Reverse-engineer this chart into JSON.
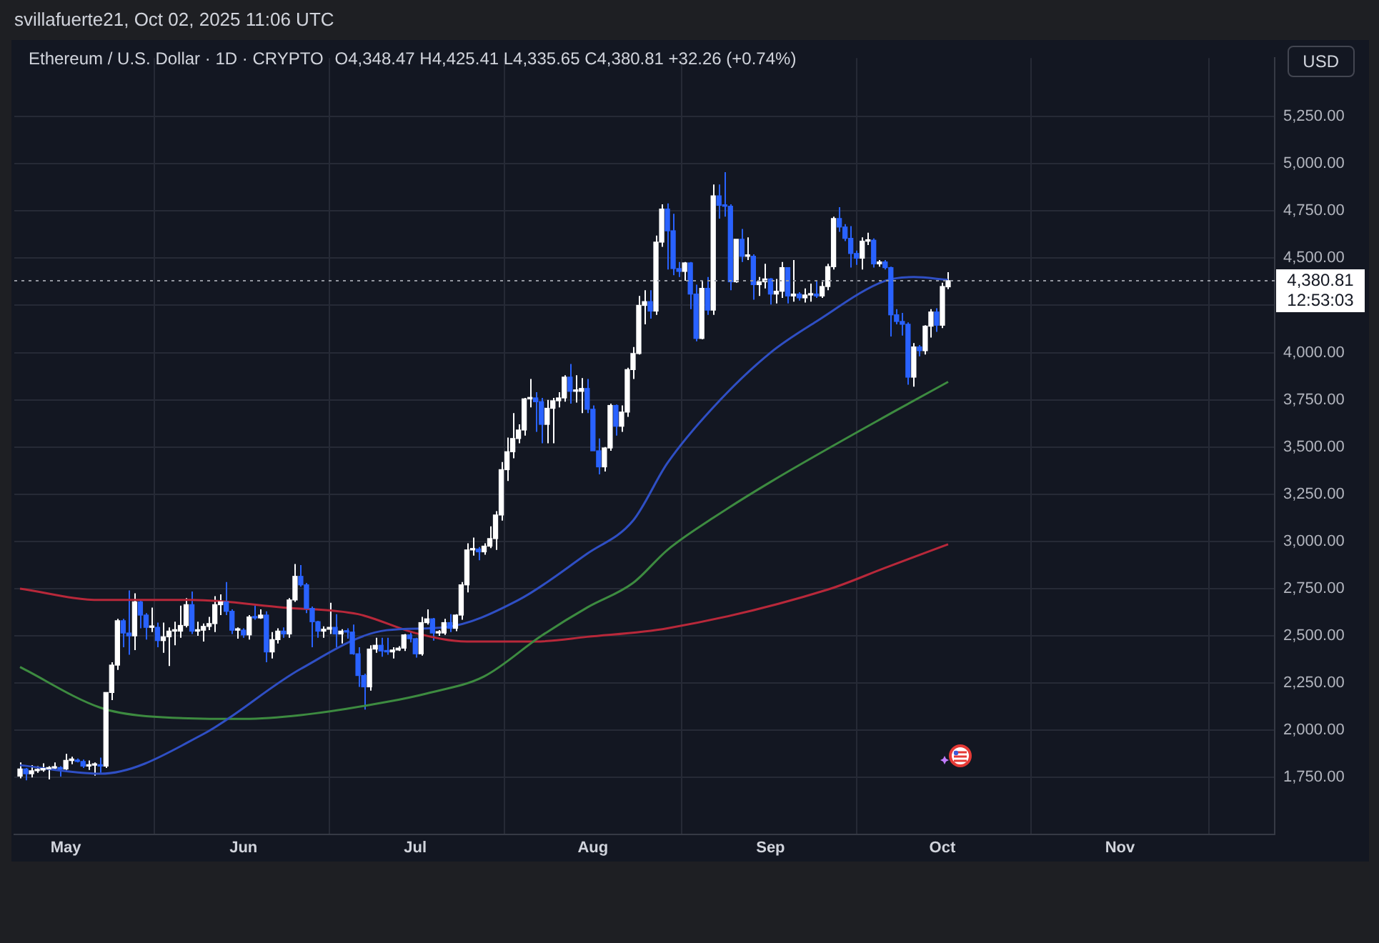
{
  "chart_data": {
    "type": "candlestick",
    "title": "Ethereum / U.S. Dollar · 1D · CRYPTO",
    "subtitle": "O4,348.47  H4,425.41  L4,335.65  C4,380.81  +32.26 (+0.74%)",
    "ylabel": "USD",
    "annotations": [
      "svillafuerte21, Oct 02, 2025 11:06 UTC",
      "12:53:03"
    ],
    "x": [
      "2025-04-23",
      "2025-04-24",
      "2025-04-25",
      "2025-04-26",
      "2025-04-27",
      "2025-04-28",
      "2025-04-29",
      "2025-04-30",
      "2025-05-01",
      "2025-05-02",
      "2025-05-03",
      "2025-05-04",
      "2025-05-05",
      "2025-05-06",
      "2025-05-07",
      "2025-05-08",
      "2025-05-09",
      "2025-05-10",
      "2025-05-11",
      "2025-05-12",
      "2025-05-13",
      "2025-05-14",
      "2025-05-15",
      "2025-05-16",
      "2025-05-17",
      "2025-05-18",
      "2025-05-19",
      "2025-05-20",
      "2025-05-21",
      "2025-05-22",
      "2025-05-23",
      "2025-05-24",
      "2025-05-25",
      "2025-05-26",
      "2025-05-27",
      "2025-05-28",
      "2025-05-29",
      "2025-05-30",
      "2025-05-31",
      "2025-06-01",
      "2025-06-02",
      "2025-06-03",
      "2025-06-04",
      "2025-06-05",
      "2025-06-06",
      "2025-06-07",
      "2025-06-08",
      "2025-06-09",
      "2025-06-10",
      "2025-06-11",
      "2025-06-12",
      "2025-06-13",
      "2025-06-14",
      "2025-06-15",
      "2025-06-16",
      "2025-06-17",
      "2025-06-18",
      "2025-06-19",
      "2025-06-20",
      "2025-06-21",
      "2025-06-22",
      "2025-06-23",
      "2025-06-24",
      "2025-06-25",
      "2025-06-26",
      "2025-06-27",
      "2025-06-28",
      "2025-06-29",
      "2025-06-30",
      "2025-07-01",
      "2025-07-02",
      "2025-07-03",
      "2025-07-04",
      "2025-07-05",
      "2025-07-06",
      "2025-07-07",
      "2025-07-08",
      "2025-07-09",
      "2025-07-10",
      "2025-07-11",
      "2025-07-12",
      "2025-07-13",
      "2025-07-14",
      "2025-07-15",
      "2025-07-16",
      "2025-07-17",
      "2025-07-18",
      "2025-07-19",
      "2025-07-20",
      "2025-07-21",
      "2025-07-22",
      "2025-07-23",
      "2025-07-24",
      "2025-07-25",
      "2025-07-26",
      "2025-07-27",
      "2025-07-28",
      "2025-07-29",
      "2025-07-30",
      "2025-07-31",
      "2025-08-01",
      "2025-08-02",
      "2025-08-03",
      "2025-08-04",
      "2025-08-05",
      "2025-08-06",
      "2025-08-07",
      "2025-08-08",
      "2025-08-09",
      "2025-08-10",
      "2025-08-11",
      "2025-08-12",
      "2025-08-13",
      "2025-08-14",
      "2025-08-15",
      "2025-08-16",
      "2025-08-17",
      "2025-08-18",
      "2025-08-19",
      "2025-08-20",
      "2025-08-21",
      "2025-08-22",
      "2025-08-23",
      "2025-08-24",
      "2025-08-25",
      "2025-08-26",
      "2025-08-27",
      "2025-08-28",
      "2025-08-29",
      "2025-08-30",
      "2025-08-31",
      "2025-09-01",
      "2025-09-02",
      "2025-09-03",
      "2025-09-04",
      "2025-09-05",
      "2025-09-06",
      "2025-09-07",
      "2025-09-08",
      "2025-09-09",
      "2025-09-10",
      "2025-09-11",
      "2025-09-12",
      "2025-09-13",
      "2025-09-14",
      "2025-09-15",
      "2025-09-16",
      "2025-09-17",
      "2025-09-18",
      "2025-09-19",
      "2025-09-20",
      "2025-09-21",
      "2025-09-22",
      "2025-09-23",
      "2025-09-24",
      "2025-09-25",
      "2025-09-26",
      "2025-09-27",
      "2025-09-28",
      "2025-09-29",
      "2025-09-30",
      "2025-10-01",
      "2025-10-02"
    ],
    "ohlc": [
      [
        1757,
        1830,
        1745,
        1795
      ],
      [
        1795,
        1800,
        1735,
        1770
      ],
      [
        1770,
        1815,
        1750,
        1786
      ],
      [
        1786,
        1810,
        1775,
        1790
      ],
      [
        1790,
        1825,
        1780,
        1795
      ],
      [
        1795,
        1810,
        1740,
        1800
      ],
      [
        1800,
        1830,
        1785,
        1800
      ],
      [
        1800,
        1810,
        1755,
        1795
      ],
      [
        1795,
        1875,
        1790,
        1840
      ],
      [
        1840,
        1860,
        1820,
        1840
      ],
      [
        1840,
        1850,
        1830,
        1835
      ],
      [
        1835,
        1845,
        1800,
        1810
      ],
      [
        1810,
        1840,
        1790,
        1815
      ],
      [
        1815,
        1830,
        1760,
        1815
      ],
      [
        1815,
        1855,
        1775,
        1810
      ],
      [
        1810,
        2200,
        1800,
        2200
      ],
      [
        2200,
        2360,
        2160,
        2345
      ],
      [
        2345,
        2590,
        2320,
        2580
      ],
      [
        2580,
        2590,
        2440,
        2515
      ],
      [
        2515,
        2740,
        2400,
        2500
      ],
      [
        2500,
        2725,
        2425,
        2680
      ],
      [
        2680,
        2690,
        2540,
        2610
      ],
      [
        2610,
        2620,
        2480,
        2545
      ],
      [
        2545,
        2650,
        2520,
        2545
      ],
      [
        2545,
        2570,
        2440,
        2475
      ],
      [
        2475,
        2570,
        2410,
        2495
      ],
      [
        2495,
        2545,
        2340,
        2525
      ],
      [
        2525,
        2575,
        2450,
        2525
      ],
      [
        2525,
        2660,
        2490,
        2555
      ],
      [
        2555,
        2700,
        2545,
        2665
      ],
      [
        2665,
        2735,
        2510,
        2525
      ],
      [
        2525,
        2575,
        2500,
        2530
      ],
      [
        2530,
        2565,
        2470,
        2550
      ],
      [
        2550,
        2600,
        2530,
        2565
      ],
      [
        2565,
        2710,
        2520,
        2665
      ],
      [
        2665,
        2720,
        2610,
        2680
      ],
      [
        2680,
        2785,
        2610,
        2630
      ],
      [
        2630,
        2640,
        2510,
        2530
      ],
      [
        2530,
        2545,
        2485,
        2530
      ],
      [
        2530,
        2540,
        2490,
        2505
      ],
      [
        2505,
        2610,
        2480,
        2600
      ],
      [
        2600,
        2660,
        2585,
        2595
      ],
      [
        2595,
        2640,
        2590,
        2610
      ],
      [
        2610,
        2630,
        2360,
        2415
      ],
      [
        2415,
        2520,
        2380,
        2480
      ],
      [
        2480,
        2540,
        2460,
        2525
      ],
      [
        2525,
        2545,
        2490,
        2510
      ],
      [
        2510,
        2700,
        2490,
        2690
      ],
      [
        2690,
        2880,
        2680,
        2815
      ],
      [
        2815,
        2875,
        2760,
        2770
      ],
      [
        2770,
        2780,
        2620,
        2645
      ],
      [
        2645,
        2655,
        2440,
        2575
      ],
      [
        2575,
        2580,
        2490,
        2525
      ],
      [
        2525,
        2550,
        2490,
        2535
      ],
      [
        2535,
        2675,
        2510,
        2545
      ],
      [
        2545,
        2615,
        2440,
        2510
      ],
      [
        2510,
        2535,
        2460,
        2525
      ],
      [
        2525,
        2540,
        2485,
        2520
      ],
      [
        2520,
        2560,
        2400,
        2405
      ],
      [
        2405,
        2440,
        2230,
        2290
      ],
      [
        2290,
        2300,
        2110,
        2230
      ],
      [
        2230,
        2450,
        2210,
        2430
      ],
      [
        2430,
        2490,
        2410,
        2450
      ],
      [
        2450,
        2490,
        2390,
        2420
      ],
      [
        2420,
        2490,
        2400,
        2415
      ],
      [
        2415,
        2440,
        2380,
        2425
      ],
      [
        2425,
        2445,
        2420,
        2435
      ],
      [
        2435,
        2510,
        2420,
        2505
      ],
      [
        2505,
        2525,
        2465,
        2485
      ],
      [
        2485,
        2490,
        2385,
        2405
      ],
      [
        2405,
        2600,
        2395,
        2570
      ],
      [
        2570,
        2640,
        2560,
        2590
      ],
      [
        2590,
        2595,
        2475,
        2515
      ],
      [
        2515,
        2530,
        2500,
        2515
      ],
      [
        2515,
        2590,
        2505,
        2570
      ],
      [
        2570,
        2615,
        2520,
        2540
      ],
      [
        2540,
        2615,
        2525,
        2610
      ],
      [
        2610,
        2785,
        2585,
        2770
      ],
      [
        2770,
        2990,
        2730,
        2955
      ],
      [
        2955,
        3020,
        2925,
        2960
      ],
      [
        2960,
        2970,
        2900,
        2945
      ],
      [
        2945,
        2990,
        2930,
        2975
      ],
      [
        2975,
        3080,
        2965,
        3015
      ],
      [
        3015,
        3160,
        2955,
        3140
      ],
      [
        3140,
        3420,
        3110,
        3380
      ],
      [
        3380,
        3550,
        3320,
        3475
      ],
      [
        3475,
        3680,
        3440,
        3545
      ],
      [
        3545,
        3620,
        3520,
        3590
      ],
      [
        3590,
        3760,
        3560,
        3755
      ],
      [
        3755,
        3860,
        3710,
        3760
      ],
      [
        3760,
        3790,
        3580,
        3740
      ],
      [
        3740,
        3760,
        3520,
        3620
      ],
      [
        3620,
        3750,
        3520,
        3705
      ],
      [
        3705,
        3760,
        3520,
        3745
      ],
      [
        3745,
        3790,
        3710,
        3760
      ],
      [
        3760,
        3880,
        3740,
        3870
      ],
      [
        3870,
        3940,
        3730,
        3795
      ],
      [
        3795,
        3880,
        3735,
        3795
      ],
      [
        3795,
        3865,
        3680,
        3810
      ],
      [
        3810,
        3860,
        3680,
        3700
      ],
      [
        3700,
        3720,
        3480,
        3480
      ],
      [
        3480,
        3545,
        3355,
        3395
      ],
      [
        3395,
        3500,
        3370,
        3495
      ],
      [
        3495,
        3730,
        3480,
        3720
      ],
      [
        3720,
        3725,
        3560,
        3610
      ],
      [
        3610,
        3720,
        3580,
        3685
      ],
      [
        3685,
        3920,
        3660,
        3910
      ],
      [
        3910,
        4030,
        3860,
        3995
      ],
      [
        3995,
        4300,
        3990,
        4250
      ],
      [
        4250,
        4330,
        4150,
        4270
      ],
      [
        4270,
        4330,
        4180,
        4220
      ],
      [
        4220,
        4620,
        4200,
        4585
      ],
      [
        4585,
        4785,
        4560,
        4760
      ],
      [
        4760,
        4790,
        4440,
        4645
      ],
      [
        4645,
        4735,
        4410,
        4445
      ],
      [
        4445,
        4480,
        4400,
        4430
      ],
      [
        4430,
        4480,
        4380,
        4475
      ],
      [
        4475,
        4480,
        4230,
        4310
      ],
      [
        4310,
        4360,
        4060,
        4075
      ],
      [
        4075,
        4380,
        4070,
        4340
      ],
      [
        4340,
        4400,
        4200,
        4225
      ],
      [
        4225,
        4890,
        4200,
        4830
      ],
      [
        4830,
        4890,
        4710,
        4780
      ],
      [
        4780,
        4955,
        4720,
        4775
      ],
      [
        4775,
        4785,
        4330,
        4375
      ],
      [
        4375,
        4600,
        4370,
        4600
      ],
      [
        4600,
        4655,
        4480,
        4510
      ],
      [
        4510,
        4610,
        4490,
        4510
      ],
      [
        4510,
        4520,
        4280,
        4360
      ],
      [
        4360,
        4400,
        4300,
        4375
      ],
      [
        4375,
        4470,
        4340,
        4390
      ],
      [
        4390,
        4395,
        4255,
        4310
      ],
      [
        4310,
        4390,
        4260,
        4325
      ],
      [
        4325,
        4480,
        4290,
        4450
      ],
      [
        4450,
        4450,
        4260,
        4300
      ],
      [
        4300,
        4490,
        4270,
        4310
      ],
      [
        4310,
        4320,
        4275,
        4290
      ],
      [
        4290,
        4340,
        4265,
        4305
      ],
      [
        4305,
        4365,
        4270,
        4310
      ],
      [
        4310,
        4380,
        4290,
        4300
      ],
      [
        4300,
        4375,
        4290,
        4350
      ],
      [
        4350,
        4470,
        4330,
        4455
      ],
      [
        4455,
        4720,
        4440,
        4710
      ],
      [
        4710,
        4770,
        4640,
        4665
      ],
      [
        4665,
        4680,
        4590,
        4605
      ],
      [
        4605,
        4670,
        4450,
        4525
      ],
      [
        4525,
        4540,
        4465,
        4500
      ],
      [
        4500,
        4610,
        4440,
        4590
      ],
      [
        4590,
        4635,
        4570,
        4595
      ],
      [
        4595,
        4605,
        4450,
        4470
      ],
      [
        4470,
        4490,
        4455,
        4480
      ],
      [
        4480,
        4490,
        4440,
        4450
      ],
      [
        4450,
        4455,
        4085,
        4200
      ],
      [
        4200,
        4230,
        4150,
        4165
      ],
      [
        4165,
        4210,
        4090,
        4150
      ],
      [
        4150,
        4160,
        3830,
        3870
      ],
      [
        3870,
        4050,
        3820,
        4030
      ],
      [
        4030,
        4040,
        3980,
        4010
      ],
      [
        4010,
        4145,
        3990,
        4140
      ],
      [
        4140,
        4230,
        4080,
        4215
      ],
      [
        4215,
        4235,
        4110,
        4145
      ],
      [
        4145,
        4370,
        4130,
        4350
      ],
      [
        4348.47,
        4425.41,
        4335.65,
        4380.81
      ]
    ],
    "colors": [
      "#ffffff",
      "#2962ff",
      "#ffffff",
      "#ffffff",
      "#ffffff",
      "#ffffff",
      "#ffffff",
      "#2962ff",
      "#ffffff",
      "#ffffff",
      "#2962ff",
      "#2962ff",
      "#ffffff",
      "#ffffff",
      "#2962ff",
      "#ffffff",
      "#ffffff",
      "#ffffff",
      "#2962ff",
      "#2962ff",
      "#ffffff",
      "#2962ff",
      "#2962ff",
      "#ffffff",
      "#2962ff",
      "#ffffff",
      "#ffffff",
      "#ffffff",
      "#ffffff",
      "#ffffff",
      "#2962ff",
      "#ffffff",
      "#ffffff",
      "#ffffff",
      "#ffffff",
      "#ffffff",
      "#2962ff",
      "#2962ff",
      "#ffffff",
      "#2962ff",
      "#ffffff",
      "#2962ff",
      "#ffffff",
      "#2962ff",
      "#ffffff",
      "#ffffff",
      "#2962ff",
      "#ffffff",
      "#ffffff",
      "#2962ff",
      "#2962ff",
      "#2962ff",
      "#2962ff",
      "#ffffff",
      "#ffffff",
      "#2962ff",
      "#ffffff",
      "#2962ff",
      "#2962ff",
      "#2962ff",
      "#2962ff",
      "#ffffff",
      "#ffffff",
      "#2962ff",
      "#2962ff",
      "#ffffff",
      "#ffffff",
      "#ffffff",
      "#2962ff",
      "#2962ff",
      "#ffffff",
      "#ffffff",
      "#2962ff",
      "#ffffff",
      "#ffffff",
      "#2962ff",
      "#ffffff",
      "#ffffff",
      "#ffffff",
      "#ffffff",
      "#2962ff",
      "#ffffff",
      "#ffffff",
      "#ffffff",
      "#ffffff",
      "#ffffff",
      "#ffffff",
      "#ffffff",
      "#ffffff",
      "#ffffff",
      "#2962ff",
      "#2962ff",
      "#ffffff",
      "#ffffff",
      "#ffffff",
      "#ffffff",
      "#2962ff",
      "#ffffff",
      "#ffffff",
      "#2962ff",
      "#2962ff",
      "#2962ff",
      "#ffffff",
      "#ffffff",
      "#2962ff",
      "#ffffff",
      "#ffffff",
      "#ffffff",
      "#ffffff",
      "#ffffff",
      "#2962ff",
      "#ffffff",
      "#ffffff",
      "#2962ff",
      "#2962ff",
      "#2962ff",
      "#ffffff",
      "#2962ff",
      "#2962ff",
      "#ffffff",
      "#2962ff",
      "#ffffff",
      "#2962ff",
      "#2962ff",
      "#2962ff",
      "#ffffff",
      "#2962ff",
      "#ffffff",
      "#2962ff",
      "#ffffff",
      "#ffffff",
      "#2962ff",
      "#ffffff",
      "#ffffff",
      "#2962ff",
      "#ffffff",
      "#2962ff",
      "#ffffff",
      "#ffffff",
      "#2962ff",
      "#ffffff",
      "#ffffff",
      "#ffffff",
      "#2962ff",
      "#2962ff",
      "#2962ff",
      "#2962ff",
      "#ffffff",
      "#ffffff",
      "#2962ff",
      "#ffffff",
      "#2962ff",
      "#2962ff",
      "#2962ff",
      "#2962ff",
      "#2962ff",
      "#ffffff",
      "#2962ff",
      "#ffffff",
      "#ffffff",
      "#2962ff",
      "#ffffff",
      "#ffffff"
    ],
    "series": [
      {
        "type": "line",
        "color": "#2f4fc4",
        "x": [
          "2025-04-23",
          "2025-05-07",
          "2025-05-25",
          "2025-06-11",
          "2025-06-26",
          "2025-07-06",
          "2025-07-19",
          "2025-07-31",
          "2025-08-08",
          "2025-08-14",
          "2025-08-22",
          "2025-09-01",
          "2025-09-09",
          "2025-09-21",
          "2025-09-26",
          "2025-10-02"
        ],
        "values": [
          1815,
          1770,
          1980,
          2325,
          2530,
          2545,
          2690,
          2935,
          3110,
          3415,
          3710,
          4000,
          4165,
          4380,
          4400,
          4385
        ]
      },
      {
        "type": "line",
        "color": "#3d8b40",
        "x": [
          "2025-04-23",
          "2025-05-07",
          "2025-05-15",
          "2025-06-01",
          "2025-06-11",
          "2025-06-26",
          "2025-07-03",
          "2025-07-13",
          "2025-07-23",
          "2025-07-31",
          "2025-08-08",
          "2025-08-14",
          "2025-08-22",
          "2025-09-01",
          "2025-09-23",
          "2025-10-02"
        ],
        "values": [
          2335,
          2120,
          2075,
          2060,
          2080,
          2150,
          2195,
          2285,
          2500,
          2650,
          2780,
          2955,
          3125,
          3315,
          3695,
          3845
        ]
      },
      {
        "type": "line",
        "color": "#b8283a",
        "x": [
          "2025-04-23",
          "2025-05-07",
          "2025-05-23",
          "2025-06-08",
          "2025-06-21",
          "2025-07-01",
          "2025-07-10",
          "2025-07-22",
          "2025-07-31",
          "2025-08-14",
          "2025-09-11",
          "2025-09-21",
          "2025-10-02"
        ],
        "values": [
          2750,
          2690,
          2690,
          2650,
          2615,
          2515,
          2470,
          2470,
          2495,
          2540,
          2745,
          2860,
          2985
        ]
      }
    ],
    "xlim": [
      "2025-04-22",
      "2025-11-28"
    ],
    "xticks": [
      {
        "value": "2025-05-01",
        "label": "May"
      },
      {
        "value": "2025-06-01",
        "label": "Jun"
      },
      {
        "value": "2025-07-01",
        "label": "Jul"
      },
      {
        "value": "2025-08-01",
        "label": "Aug"
      },
      {
        "value": "2025-09-01",
        "label": "Sep"
      },
      {
        "value": "2025-10-01",
        "label": "Oct"
      },
      {
        "value": "2025-11-01",
        "label": "Nov"
      }
    ],
    "ylim": [
      1450,
      5560
    ],
    "yticks": [
      {
        "value": 1750,
        "label": "1,750.00"
      },
      {
        "value": 2000,
        "label": "2,000.00"
      },
      {
        "value": 2250,
        "label": "2,250.00"
      },
      {
        "value": 2500,
        "label": "2,500.00"
      },
      {
        "value": 2750,
        "label": "2,750.00"
      },
      {
        "value": 3000,
        "label": "3,000.00"
      },
      {
        "value": 3250,
        "label": "3,250.00"
      },
      {
        "value": 3500,
        "label": "3,500.00"
      },
      {
        "value": 3750,
        "label": "3,750.00"
      },
      {
        "value": 4000,
        "label": "4,000.00"
      },
      {
        "value": 4250,
        "label": null
      },
      {
        "value": 4500,
        "label": "4,500.00"
      },
      {
        "value": 4750,
        "label": "4,750.00"
      },
      {
        "value": 5000,
        "label": "5,000.00"
      },
      {
        "value": 5250,
        "label": "5,250.00"
      }
    ],
    "ref_lines": [
      {
        "axis": "y",
        "value": 4380.81,
        "label": "4,380.81",
        "line_style": "dotted",
        "color": "#9598a1"
      }
    ],
    "grid": true
  }
}
